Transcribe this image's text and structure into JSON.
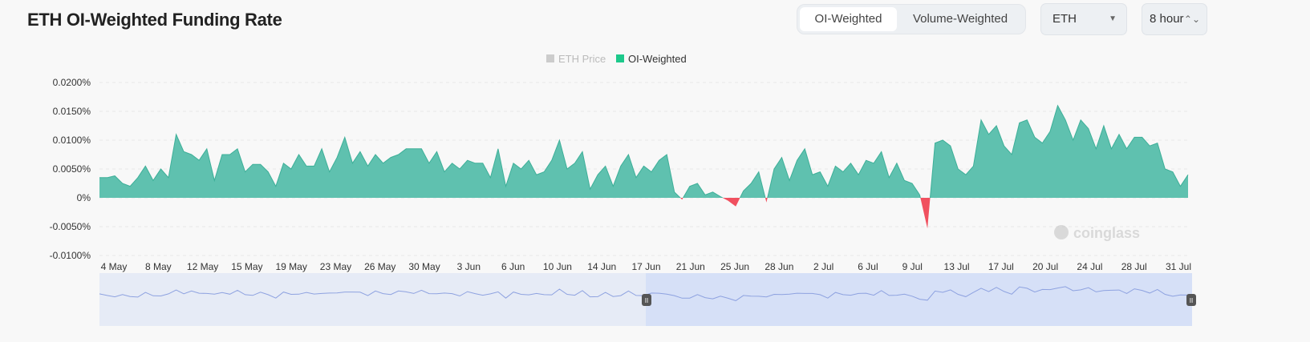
{
  "title": "ETH OI-Weighted Funding Rate",
  "toggle": {
    "active": "OI-Weighted",
    "inactive": "Volume-Weighted"
  },
  "symbol_select": {
    "value": "ETH"
  },
  "interval_select": {
    "value": "8 hour"
  },
  "watermark": "coinglass",
  "colors": {
    "positive": "#5fc1af",
    "negative": "#f0505f",
    "navigator": "#d6e0f7"
  },
  "chart_data": {
    "type": "area",
    "title": "ETH OI-Weighted Funding Rate",
    "legend": [
      {
        "name": "ETH Price",
        "enabled": false,
        "color": "#cccccc"
      },
      {
        "name": "OI-Weighted",
        "enabled": true,
        "color": "#1dc98b"
      }
    ],
    "legend_position": "top-center",
    "y_ticks": [
      "0.0200%",
      "0.0150%",
      "0.0100%",
      "0.0050%",
      "0%",
      "-0.0050%",
      "-0.0100%"
    ],
    "y_tick_values": [
      0.02,
      0.015,
      0.01,
      0.005,
      0,
      -0.005,
      -0.01
    ],
    "ylim": [
      -0.01,
      0.02
    ],
    "x_ticks": [
      "4 May",
      "8 May",
      "12 May",
      "15 May",
      "19 May",
      "23 May",
      "26 May",
      "30 May",
      "3 Jun",
      "6 Jun",
      "10 Jun",
      "14 Jun",
      "17 Jun",
      "21 Jun",
      "25 Jun",
      "28 Jun",
      "2 Jul",
      "6 Jul",
      "9 Jul",
      "13 Jul",
      "17 Jul",
      "20 Jul",
      "24 Jul",
      "28 Jul",
      "31 Jul"
    ],
    "unit": "%",
    "values": [
      0.0035,
      0.0035,
      0.0038,
      0.0025,
      0.002,
      0.0035,
      0.0055,
      0.003,
      0.005,
      0.0035,
      0.011,
      0.008,
      0.0075,
      0.0065,
      0.0085,
      0.003,
      0.0075,
      0.0075,
      0.0085,
      0.0045,
      0.0058,
      0.0058,
      0.0045,
      0.002,
      0.006,
      0.005,
      0.0075,
      0.0055,
      0.0055,
      0.0085,
      0.0045,
      0.007,
      0.0105,
      0.006,
      0.008,
      0.0055,
      0.0075,
      0.006,
      0.007,
      0.0075,
      0.0085,
      0.0085,
      0.0085,
      0.006,
      0.008,
      0.0045,
      0.006,
      0.005,
      0.0065,
      0.006,
      0.006,
      0.0035,
      0.0085,
      0.002,
      0.006,
      0.005,
      0.0065,
      0.004,
      0.0045,
      0.0065,
      0.01,
      0.005,
      0.006,
      0.008,
      0.0015,
      0.004,
      0.0055,
      0.002,
      0.0055,
      0.0075,
      0.0035,
      0.0055,
      0.0045,
      0.0065,
      0.0075,
      0.001,
      -0.0003,
      0.002,
      0.0025,
      0.0005,
      0.001,
      0.0002,
      -0.0005,
      -0.0015,
      0.0012,
      0.0025,
      0.0045,
      -0.0008,
      0.005,
      0.007,
      0.003,
      0.0065,
      0.0085,
      0.004,
      0.0045,
      0.002,
      0.0055,
      0.0045,
      0.006,
      0.004,
      0.0065,
      0.006,
      0.008,
      0.0035,
      0.006,
      0.003,
      0.0025,
      0.0005,
      -0.0053,
      0.0095,
      0.01,
      0.009,
      0.005,
      0.004,
      0.0055,
      0.0135,
      0.011,
      0.0125,
      0.009,
      0.0075,
      0.013,
      0.0135,
      0.0105,
      0.0095,
      0.0115,
      0.016,
      0.0135,
      0.01,
      0.0135,
      0.012,
      0.0085,
      0.0125,
      0.0085,
      0.011,
      0.0085,
      0.0105,
      0.0105,
      0.009,
      0.0095,
      0.005,
      0.0045,
      0.002,
      0.004
    ]
  }
}
